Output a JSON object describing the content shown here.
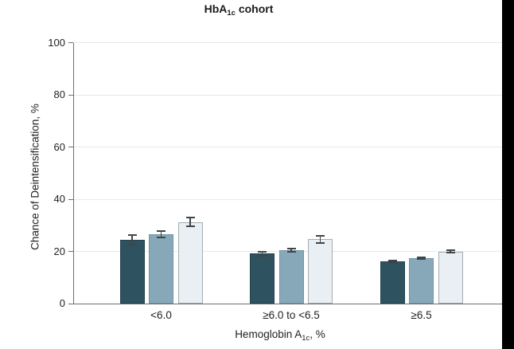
{
  "title": {
    "prefix": "HbA",
    "sub": "1c",
    "suffix": " cohort"
  },
  "y_axis": {
    "label": "Chance of Deintensification, %",
    "ticks": [
      "0",
      "20",
      "40",
      "60",
      "80",
      "100"
    ]
  },
  "x_axis": {
    "label_prefix": "Hemoglobin A",
    "label_sub": "1c",
    "label_suffix": ", %"
  },
  "colors": {
    "series_dark_teal": "#2F5261",
    "series_dark_teal_border": "#24424E",
    "series_medium_blue_gray": "#87A8B8",
    "series_medium_blue_gray_border": "#7095A5",
    "series_light_gray": "#E9EFF2",
    "series_light_gray_border": "#A3ADB3",
    "error_bar": "#3F4549",
    "gridline": "#E8E8E8",
    "axis": "#6E6E6E",
    "right_crop_strip": "#000000"
  },
  "chart_data": {
    "type": "bar",
    "title": "HbA1c cohort",
    "xlabel": "Hemoglobin A1c, %",
    "ylabel": "Chance of Deintensification, %",
    "ylim": [
      0,
      100
    ],
    "yticks": [
      0,
      20,
      40,
      60,
      80,
      100
    ],
    "grid": true,
    "legend_position": "none-visible-in-crop",
    "error_bars": true,
    "categories": [
      "<6.0",
      "≥6.0 to <6.5",
      "≥6.5"
    ],
    "series": [
      {
        "name": "dark-teal-bar",
        "color": "#2F5261",
        "border": "#24424E",
        "values": [
          24.4,
          19.1,
          16.1
        ],
        "ci_low": [
          22.4,
          18.1,
          15.4
        ],
        "ci_high": [
          26.5,
          20.1,
          16.8
        ]
      },
      {
        "name": "medium-blue-gray-bar",
        "color": "#87A8B8",
        "border": "#7095A5",
        "values": [
          26.5,
          20.4,
          17.5
        ],
        "ci_low": [
          25.0,
          19.4,
          17.0
        ],
        "ci_high": [
          28.0,
          21.4,
          18.0
        ]
      },
      {
        "name": "light-gray-bar",
        "color": "#E9EFF2",
        "border": "#A3ADB3",
        "values": [
          31.0,
          24.7,
          20.0
        ],
        "ci_low": [
          29.2,
          23.0,
          19.3
        ],
        "ci_high": [
          33.4,
          26.4,
          20.7
        ]
      }
    ]
  }
}
